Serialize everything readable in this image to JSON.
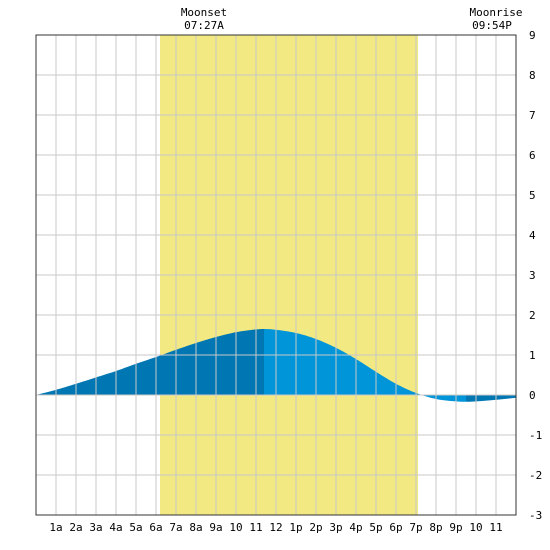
{
  "colors": {
    "background": "#ffffff",
    "grid": "#c8c8c8",
    "daylight": "#f2e983",
    "tide_rising": "#0077b3",
    "tide_falling": "#0095d8",
    "axis": "#333333",
    "text": "#000000"
  },
  "moon": {
    "moonset": {
      "label": "Moonset",
      "time": "07:27A"
    },
    "moonrise": {
      "label": "Moonrise",
      "time": "09:54P"
    }
  },
  "chart_data": {
    "type": "area",
    "title": "",
    "xlabel": "",
    "ylabel": "",
    "x_unit": "hour of day",
    "xlim": [
      0,
      24
    ],
    "ylim": [
      -3,
      9
    ],
    "grid": true,
    "x_tick_labels": [
      "1a",
      "2a",
      "3a",
      "4a",
      "5a",
      "6a",
      "7a",
      "8a",
      "9a",
      "10",
      "11",
      "12",
      "1p",
      "2p",
      "3p",
      "4p",
      "5p",
      "6p",
      "7p",
      "8p",
      "9p",
      "10",
      "11"
    ],
    "y_ticks": [
      -3,
      -2,
      -1,
      0,
      1,
      2,
      3,
      4,
      5,
      6,
      7,
      8,
      9
    ],
    "daylight_span": {
      "start": 6.2,
      "end": 19.1
    },
    "high_tide": {
      "x": 11.4,
      "y": 1.65
    },
    "low_tide": {
      "x": 21.5,
      "y": -0.17
    },
    "series": [
      {
        "x": [
          0,
          1,
          2,
          3,
          4,
          5,
          6,
          7,
          8,
          9,
          10,
          11,
          11.4,
          12,
          13,
          14,
          15,
          16,
          17,
          18,
          19,
          20,
          21,
          21.5,
          22,
          23,
          24
        ],
        "values": [
          0.0,
          0.13,
          0.28,
          0.44,
          0.6,
          0.78,
          0.95,
          1.13,
          1.3,
          1.45,
          1.57,
          1.64,
          1.65,
          1.63,
          1.55,
          1.4,
          1.18,
          0.9,
          0.58,
          0.28,
          0.05,
          -0.1,
          -0.16,
          -0.17,
          -0.16,
          -0.12,
          -0.07
        ]
      }
    ]
  }
}
